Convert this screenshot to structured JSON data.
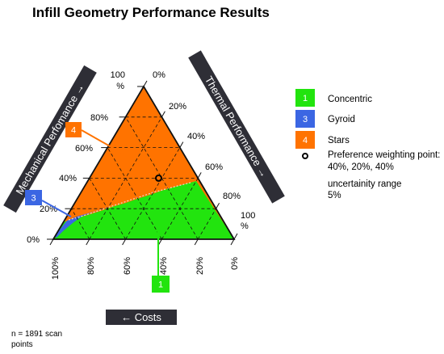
{
  "title": "Infill Geometry Performance Results",
  "axes": {
    "left": {
      "label": "Mechanical Perfomance →",
      "ticks": [
        "0%",
        "20%",
        "40%",
        "60%",
        "80%",
        "100\n%"
      ]
    },
    "right": {
      "label": "Thermal Performance →",
      "ticks": [
        "0%",
        "20%",
        "40%",
        "60%",
        "80%",
        "100\n%"
      ]
    },
    "bottom": {
      "label": "← Costs",
      "ticks": [
        "100%",
        "80%",
        "60%",
        "40%",
        "20%",
        "0%"
      ]
    }
  },
  "legend": [
    {
      "badge": "1",
      "label": "Concentric",
      "color": "#22e40e"
    },
    {
      "badge": "3",
      "label": "Gyroid",
      "color": "#3b66e3"
    },
    {
      "badge": "4",
      "label": "Stars",
      "color": "#ff7300"
    }
  ],
  "preference_point": {
    "label_line1": "Preference weighting point:",
    "label_line2": "40%, 20%, 40%",
    "mechanical": 40,
    "thermal": 20,
    "cost": 40
  },
  "uncertainty": {
    "label": "uncertainity range",
    "value": "5%"
  },
  "callouts": [
    {
      "badge": "4",
      "color": "#ff7300"
    },
    {
      "badge": "3",
      "color": "#3b66e3"
    },
    {
      "badge": "1",
      "color": "#22e40e"
    }
  ],
  "note": {
    "line1": "n = 1891 scan",
    "line2": "points"
  },
  "chart_data": {
    "type": "ternary",
    "title": "Infill Geometry Performance Results",
    "axes": [
      "Mechanical Perfomance",
      "Thermal Performance",
      "Costs"
    ],
    "grid_step": 20,
    "n_points": 1891,
    "regions": [
      {
        "name": "Stars",
        "badge": "4",
        "color": "#ff7300",
        "description_polygon": [
          [
            100,
            0,
            0
          ],
          [
            0,
            0,
            100
          ],
          [
            0,
            2,
            98
          ],
          [
            6,
            3,
            91
          ],
          [
            14,
            7,
            79
          ],
          [
            20,
            22,
            58
          ],
          [
            0,
            100,
            0
          ]
        ]
      },
      {
        "name": "Gyroid",
        "badge": "3",
        "color": "#3b66e3",
        "description_polygon": [
          [
            0,
            0,
            100
          ],
          [
            0,
            2,
            98
          ],
          [
            6,
            3,
            91
          ],
          [
            14,
            7,
            79
          ],
          [
            8,
            18,
            74
          ],
          [
            0,
            17,
            83
          ]
        ]
      },
      {
        "name": "Concentric",
        "badge": "1",
        "color": "#22e40e",
        "description_polygon": [
          [
            0,
            17,
            83
          ],
          [
            8,
            18,
            74
          ],
          [
            14,
            7,
            79
          ],
          [
            20,
            22,
            58
          ],
          [
            0,
            100,
            0
          ]
        ]
      }
    ],
    "preference_point": [
      40,
      20,
      40
    ],
    "uncertainty_range": "5%"
  }
}
